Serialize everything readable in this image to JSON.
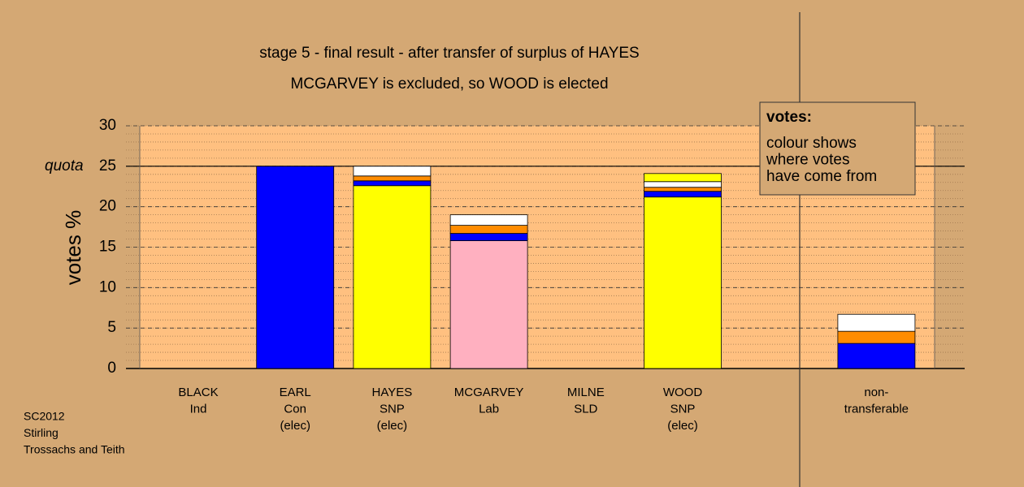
{
  "chart_data": {
    "type": "stacked-bar",
    "title": "stage 5 - final result - after transfer of surplus of HAYES",
    "subtitle": "MCGARVEY is excluded, so WOOD is elected",
    "y_label": "votes %",
    "categories": [
      [
        "BLACK",
        "Ind"
      ],
      [
        "EARL",
        "Con",
        "(elec)"
      ],
      [
        "HAYES",
        "SNP",
        "(elec)"
      ],
      [
        "MCGARVEY",
        "Lab"
      ],
      [
        "MILNE",
        "SLD"
      ],
      [
        "WOOD",
        "SNP",
        "(elec)"
      ],
      null,
      [
        "non-",
        "transferable"
      ]
    ],
    "series": [
      {
        "color": "#ffff00",
        "values": [
          0,
          0,
          22.6,
          0,
          0,
          21.2,
          null,
          0
        ]
      },
      {
        "color": "#ffb0c0",
        "values": [
          0,
          0,
          0,
          15.8,
          0,
          0,
          null,
          0
        ]
      },
      {
        "color": "#0000ff",
        "values": [
          0,
          25,
          0.6,
          0.9,
          0,
          0.7,
          null,
          3.1
        ]
      },
      {
        "color": "#ff8c00",
        "values": [
          0,
          0,
          0.6,
          1.0,
          0,
          0.5,
          null,
          1.5
        ]
      },
      {
        "color": "#ffffff",
        "values": [
          0,
          0,
          1.2,
          1.3,
          0,
          0.7,
          null,
          2.1
        ]
      },
      {
        "color": "#ffff00",
        "values": [
          0,
          0,
          0,
          0,
          0,
          1.0,
          null,
          0
        ]
      }
    ],
    "ylim": [
      0,
      30
    ],
    "yticks": [
      0,
      5,
      10,
      15,
      20,
      25,
      30
    ],
    "grid": true,
    "minor_grid_step": 1,
    "quota": 25,
    "quota_label": "quota",
    "note": {
      "heading": "votes:",
      "lines": [
        "colour shows",
        "where votes",
        "have come from"
      ]
    },
    "footnote": [
      "SC2012",
      "Stirling",
      "Trossachs and Teith"
    ]
  }
}
